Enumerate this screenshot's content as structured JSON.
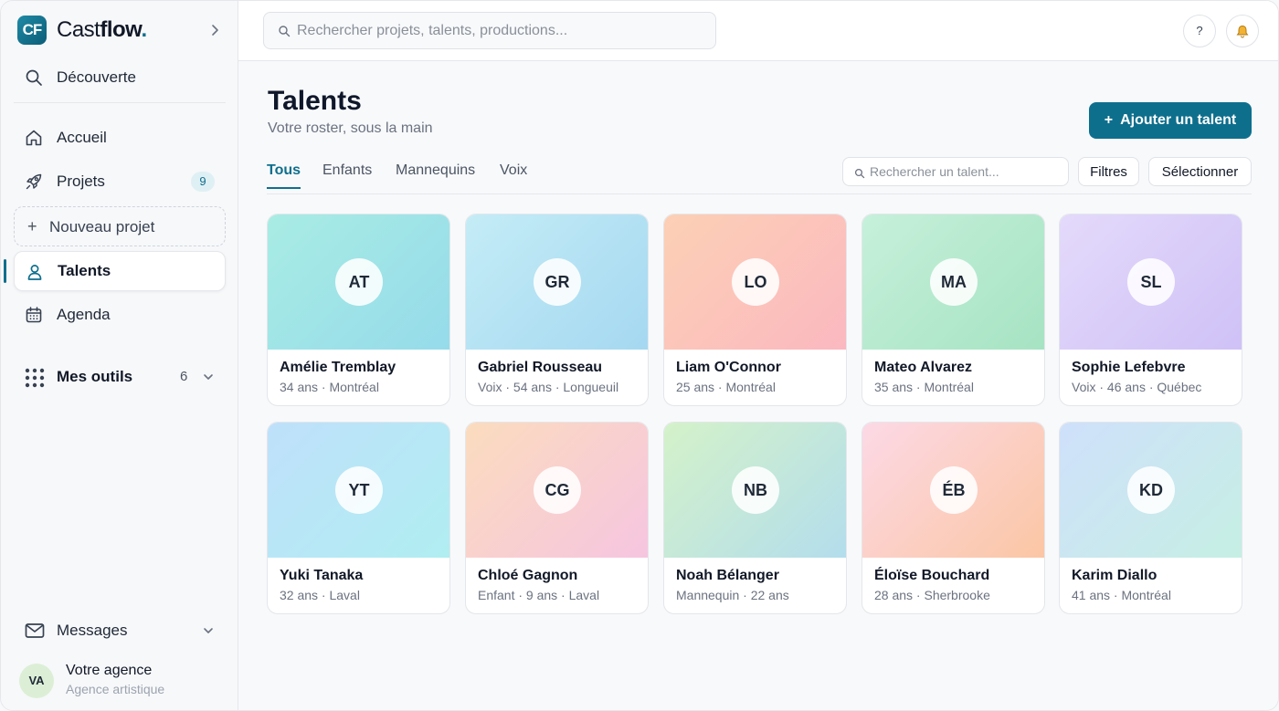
{
  "brand": {
    "initials": "CF",
    "name_part1": "Cast",
    "name_part2": "flow",
    "dot": "."
  },
  "sidebar": {
    "discover": "Découverte",
    "home": "Accueil",
    "projects": {
      "label": "Projets",
      "count": "9"
    },
    "new_project": "Nouveau projet",
    "talents": "Talents",
    "agenda": "Agenda",
    "tools": {
      "label": "Mes outils",
      "count": "6"
    },
    "messages": "Messages",
    "agency": {
      "initials": "VA",
      "name": "Votre agence",
      "subtitle": "Agence artistique"
    }
  },
  "topbar": {
    "search_placeholder": "Rechercher projets, talents, productions...",
    "help_label": "?"
  },
  "page": {
    "title": "Talents",
    "subtitle": "Votre roster, sous la main",
    "add_button": "Ajouter un talent",
    "tabs": [
      "Tous",
      "Enfants",
      "Mannequins",
      "Voix"
    ],
    "active_tab": "Tous",
    "talent_search_placeholder": "Rechercher un talent...",
    "filters_button": "Filtres",
    "select_button": "Sélectionner"
  },
  "talents": [
    {
      "initials": "AT",
      "name": "Amélie Tremblay",
      "meta": "34 ans · Montréal",
      "colors": [
        "#a9ece4",
        "#95dbea"
      ]
    },
    {
      "initials": "GR",
      "name": "Gabriel Rousseau",
      "meta": "Voix · 54 ans · Longueuil",
      "colors": [
        "#c4ecf6",
        "#a5d8f1"
      ]
    },
    {
      "initials": "LO",
      "name": "Liam O'Connor",
      "meta": "25 ans · Montréal",
      "colors": [
        "#fcd0b5",
        "#fbb8c0"
      ]
    },
    {
      "initials": "MA",
      "name": "Mateo Alvarez",
      "meta": "35 ans · Montréal",
      "colors": [
        "#c6f0da",
        "#a6e3c3"
      ]
    },
    {
      "initials": "SL",
      "name": "Sophie Lefebvre",
      "meta": "Voix · 46 ans · Québec",
      "colors": [
        "#e4dafb",
        "#cfc1f6"
      ]
    },
    {
      "initials": "YT",
      "name": "Yuki Tanaka",
      "meta": "32 ans · Laval",
      "colors": [
        "#bfe0fb",
        "#b0eef1"
      ]
    },
    {
      "initials": "CG",
      "name": "Chloé Gagnon",
      "meta": "Enfant · 9 ans · Laval",
      "colors": [
        "#fbdcbe",
        "#f6c5e0"
      ]
    },
    {
      "initials": "NB",
      "name": "Noah Bélanger",
      "meta": "Mannequin · 22 ans",
      "colors": [
        "#d4f2c9",
        "#b3ddec"
      ]
    },
    {
      "initials": "ÉB",
      "name": "Éloïse Bouchard",
      "meta": "28 ans · Sherbrooke",
      "colors": [
        "#fcd9e6",
        "#fbc6a4"
      ]
    },
    {
      "initials": "KD",
      "name": "Karim Diallo",
      "meta": "41 ans · Montréal",
      "colors": [
        "#cfe0fb",
        "#c6efe4"
      ]
    }
  ],
  "colors": {
    "accent": "#0e6f8d",
    "badge_bg": "#dff0f4"
  },
  "icons": {
    "discover": "search-icon",
    "home": "home-icon",
    "projects": "rocket-icon",
    "talents": "user-icon",
    "agenda": "calendar-icon",
    "tools": "grid-icon",
    "messages": "mail-icon",
    "notifications": "bell-icon"
  }
}
